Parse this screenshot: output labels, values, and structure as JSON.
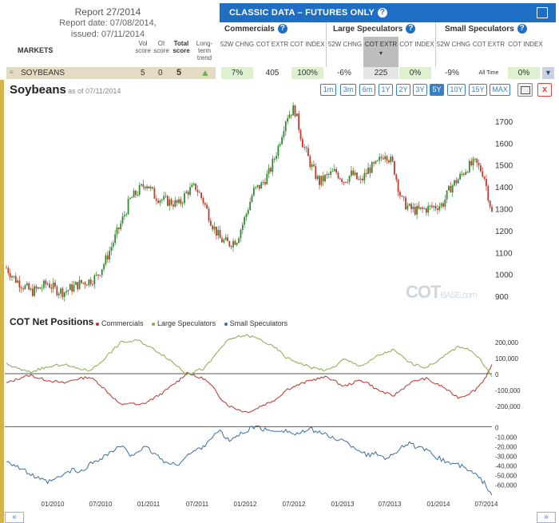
{
  "report": {
    "title": "Report 27/2014",
    "date": "Report date: 07/08/2014,",
    "issued": "issued: 07/11/2014"
  },
  "panel": {
    "title": "CLASSIC DATA – FUTURES ONLY",
    "help": "?"
  },
  "markets": {
    "header": "MARKETS",
    "col_vol": "Vol score",
    "col_oi": "OI score",
    "col_total": "Total score",
    "col_trend": "Long-term trend",
    "row": {
      "name": "SOYBEANS",
      "vol": "5",
      "oi": "0",
      "total": "5",
      "trend_icon": "up-arrow-icon"
    }
  },
  "groups": [
    {
      "name": "Commercials",
      "cols": [
        "52W CHNG",
        "COT EXTR",
        "COT INDEX"
      ],
      "vals": [
        "7%",
        "405",
        "100%"
      ]
    },
    {
      "name": "Large Speculators",
      "cols": [
        "52W CHNG",
        "COT EXTR",
        "COT INDEX"
      ],
      "vals": [
        "-6%",
        "225",
        "0%"
      ]
    },
    {
      "name": "Small Speculators",
      "cols": [
        "52W CHNG",
        "COT EXTR",
        "COT INDEX"
      ],
      "vals": [
        "-9%",
        "All Time",
        "0%"
      ]
    }
  ],
  "chart_title": "Soybeans",
  "as_of": "as of 07/11/2014",
  "periods": [
    "1m",
    "3m",
    "6m",
    "1Y",
    "2Y",
    "3Y",
    "5Y",
    "10Y",
    "15Y",
    "MAX"
  ],
  "active_period": "5Y",
  "net_title": "COT Net Positions",
  "watermark": {
    "main": "COT",
    "sub": "BASE.com"
  },
  "colors": {
    "up": "#2f8a2f",
    "down": "#c0392b",
    "commercials": "#b8332b",
    "large": "#8aab4a",
    "small": "#3a6ea5",
    "accent": "#1e6fc4"
  },
  "chart_data": [
    {
      "type": "candlestick",
      "title": "Soybeans",
      "y_ticks": [
        900,
        1000,
        1100,
        1200,
        1300,
        1400,
        1500,
        1600,
        1700
      ],
      "ylim": [
        860,
        1780
      ],
      "x_ticks": [
        "01/2010",
        "07/2010",
        "01/2011",
        "07/2011",
        "01/2012",
        "07/2012",
        "01/2013",
        "07/2013",
        "01/2014",
        "07/2014"
      ],
      "x_start": "2009-07",
      "close_monthly": [
        1030,
        980,
        950,
        920,
        935,
        960,
        930,
        920,
        940,
        960,
        970,
        990,
        1060,
        1150,
        1240,
        1340,
        1380,
        1420,
        1360,
        1340,
        1330,
        1320,
        1380,
        1400,
        1330,
        1230,
        1160,
        1140,
        1160,
        1260,
        1380,
        1410,
        1470,
        1580,
        1720,
        1760,
        1600,
        1500,
        1420,
        1450,
        1470,
        1430,
        1460,
        1420,
        1480,
        1500,
        1560,
        1500,
        1340,
        1300,
        1290,
        1300,
        1310,
        1320,
        1400,
        1440,
        1490,
        1510,
        1460,
        1280
      ]
    },
    {
      "type": "line",
      "title": "COT Net Positions",
      "series": [
        {
          "name": "Commercials",
          "values": [
            -60000,
            -40000,
            -20000,
            -10000,
            -30000,
            -40000,
            -50000,
            -60000,
            -40000,
            -30000,
            -20000,
            -50000,
            -100000,
            -150000,
            -200000,
            -180000,
            -200000,
            -180000,
            -150000,
            -120000,
            -80000,
            -40000,
            10000,
            -20000,
            -30000,
            -80000,
            -150000,
            -200000,
            -220000,
            -240000,
            -230000,
            -200000,
            -180000,
            -150000,
            -100000,
            -80000,
            -60000,
            -40000,
            -30000,
            -20000,
            -50000,
            -80000,
            -60000,
            -40000,
            -60000,
            -100000,
            -120000,
            -140000,
            -100000,
            -60000,
            -40000,
            -30000,
            -60000,
            -80000,
            -120000,
            -150000,
            -130000,
            -100000,
            -40000,
            50000
          ]
        },
        {
          "name": "Large Speculators",
          "values": [
            60000,
            40000,
            20000,
            10000,
            30000,
            40000,
            50000,
            60000,
            40000,
            30000,
            20000,
            50000,
            100000,
            150000,
            200000,
            200000,
            210000,
            180000,
            150000,
            120000,
            80000,
            40000,
            -10000,
            20000,
            30000,
            90000,
            160000,
            210000,
            230000,
            240000,
            230000,
            210000,
            180000,
            150000,
            100000,
            80000,
            60000,
            40000,
            30000,
            20000,
            50000,
            90000,
            70000,
            50000,
            70000,
            110000,
            130000,
            150000,
            110000,
            70000,
            50000,
            40000,
            70000,
            100000,
            140000,
            170000,
            160000,
            120000,
            60000,
            -20000
          ]
        }
      ],
      "y_ticks": [
        -200000,
        -100000,
        0,
        100000,
        200000
      ],
      "y_tick_labels": [
        "-200,000",
        "-100,000",
        "0",
        "100,000",
        "200,000"
      ],
      "ylim": [
        -260000,
        260000
      ]
    },
    {
      "type": "line",
      "title": "Small Speculators",
      "series": [
        {
          "name": "Small Speculators",
          "values": [
            -35000,
            -40000,
            -45000,
            -50000,
            -55000,
            -58000,
            -55000,
            -50000,
            -45000,
            -48000,
            -40000,
            -35000,
            -30000,
            -25000,
            -20000,
            -30000,
            -25000,
            -22000,
            -28000,
            -35000,
            -40000,
            -38000,
            -30000,
            -25000,
            -20000,
            -10000,
            -5000,
            -15000,
            -10000,
            -5000,
            0,
            -2000,
            -5000,
            -3000,
            -4000,
            -8000,
            -6000,
            -3000,
            -5000,
            -10000,
            -12000,
            -15000,
            -20000,
            -25000,
            -30000,
            -28000,
            -32000,
            -30000,
            -20000,
            -18000,
            -22000,
            -25000,
            -30000,
            -35000,
            -38000,
            -40000,
            -45000,
            -50000,
            -58000,
            -70000
          ]
        }
      ],
      "y_ticks": [
        0,
        -10000,
        -20000,
        -30000,
        -40000,
        -50000,
        -60000
      ],
      "y_tick_labels": [
        "0",
        "-10,000",
        "-20,000",
        "-30,000",
        "-40,000",
        "-50,000",
        "-60,000"
      ],
      "ylim": [
        -68000,
        2000
      ]
    }
  ]
}
